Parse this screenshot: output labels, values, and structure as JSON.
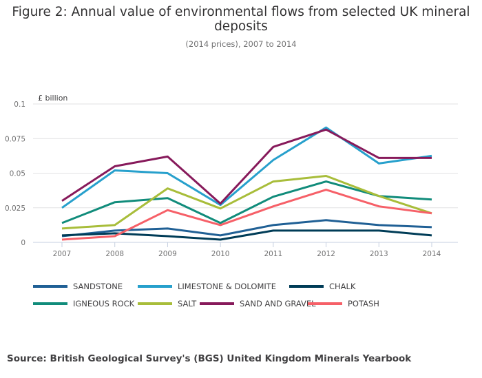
{
  "chart_data": {
    "type": "line",
    "title": "Figure 2: Annual value of environmental flows from selected UK mineral deposits",
    "subtitle": "(2014 prices), 2007 to 2014",
    "ylabel": "£ billion",
    "xlabel": "",
    "x": [
      "2007",
      "2008",
      "2009",
      "2010",
      "2011",
      "2012",
      "2013",
      "2014"
    ],
    "ylim": [
      0,
      0.1
    ],
    "yticks": [
      "0",
      "0.025",
      "0.05",
      "0.075",
      "0.1"
    ],
    "grid": true,
    "legend_position": "bottom",
    "series": [
      {
        "name": "SANDSTONE",
        "color": "#206095",
        "values": [
          0.0045,
          0.0085,
          0.01,
          0.005,
          0.0125,
          0.016,
          0.0125,
          0.011
        ]
      },
      {
        "name": "LIMESTONE & DOLOMITE",
        "color": "#27a0cc",
        "values": [
          0.025,
          0.052,
          0.05,
          0.027,
          0.0595,
          0.083,
          0.057,
          0.0625
        ]
      },
      {
        "name": "CHALK",
        "color": "#003c57",
        "values": [
          0.005,
          0.0065,
          0.0045,
          0.002,
          0.0085,
          0.0085,
          0.0085,
          0.005
        ]
      },
      {
        "name": "IGNEOUS ROCK",
        "color": "#118c7b",
        "values": [
          0.014,
          0.029,
          0.032,
          0.014,
          0.033,
          0.044,
          0.0335,
          0.031
        ]
      },
      {
        "name": "SALT",
        "color": "#a8bd3a",
        "values": [
          0.01,
          0.0125,
          0.039,
          0.0245,
          0.044,
          0.048,
          0.0335,
          0.021
        ]
      },
      {
        "name": "SAND AND GRAVEL",
        "color": "#871a5b",
        "values": [
          0.03,
          0.055,
          0.062,
          0.028,
          0.069,
          0.0815,
          0.061,
          0.061
        ]
      },
      {
        "name": "POTASH",
        "color": "#f66068",
        "values": [
          0.002,
          0.0045,
          0.0233,
          0.0125,
          0.026,
          0.038,
          0.026,
          0.021
        ]
      }
    ]
  },
  "source": "Source: British Geological Survey's (BGS) United Kingdom Minerals Yearbook"
}
